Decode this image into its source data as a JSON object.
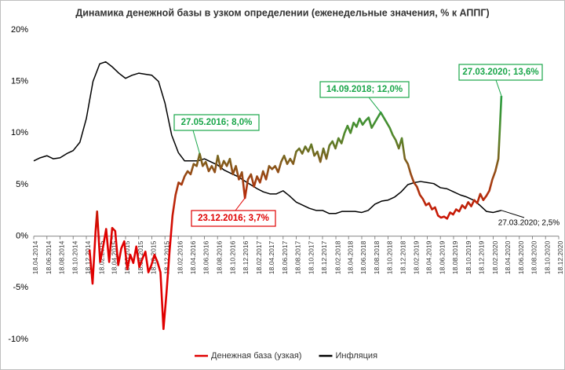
{
  "chart_data": {
    "type": "line",
    "title": "Динамика денежной базы в узком определении (еженедельные значения, % к АППГ)",
    "xlim": [
      "2014-04-18",
      "2020-12-18"
    ],
    "xticks": [
      {
        "value": "2014-04-18",
        "label": "18.04.2014"
      },
      {
        "value": "2014-06-18",
        "label": "18.06.2014"
      },
      {
        "value": "2014-08-18",
        "label": "18.08.2014"
      },
      {
        "value": "2014-10-18",
        "label": "18.10.2014"
      },
      {
        "value": "2014-12-18",
        "label": "18.12.2014"
      },
      {
        "value": "2015-02-18",
        "label": "18.02.2015"
      },
      {
        "value": "2015-04-18",
        "label": "18.04.2015"
      },
      {
        "value": "2015-06-18",
        "label": "18.06.2015"
      },
      {
        "value": "2015-08-18",
        "label": "18.08.2015"
      },
      {
        "value": "2015-10-18",
        "label": "18.10.2015"
      },
      {
        "value": "2015-12-18",
        "label": "18.12.2015"
      },
      {
        "value": "2016-02-18",
        "label": "18.02.2016"
      },
      {
        "value": "2016-04-18",
        "label": "18.04.2016"
      },
      {
        "value": "2016-06-18",
        "label": "18.06.2016"
      },
      {
        "value": "2016-08-18",
        "label": "18.08.2016"
      },
      {
        "value": "2016-10-18",
        "label": "18.10.2016"
      },
      {
        "value": "2016-12-18",
        "label": "18.12.2016"
      },
      {
        "value": "2017-02-18",
        "label": "18.02.2017"
      },
      {
        "value": "2017-04-18",
        "label": "18.04.2017"
      },
      {
        "value": "2017-06-18",
        "label": "18.06.2017"
      },
      {
        "value": "2017-08-18",
        "label": "18.08.2017"
      },
      {
        "value": "2017-10-18",
        "label": "18.10.2017"
      },
      {
        "value": "2017-12-18",
        "label": "18.12.2017"
      },
      {
        "value": "2018-02-18",
        "label": "18.02.2018"
      },
      {
        "value": "2018-04-18",
        "label": "18.04.2018"
      },
      {
        "value": "2018-06-18",
        "label": "18.06.2018"
      },
      {
        "value": "2018-08-18",
        "label": "18.08.2018"
      },
      {
        "value": "2018-10-18",
        "label": "18.10.2018"
      },
      {
        "value": "2018-12-18",
        "label": "18.12.2018"
      },
      {
        "value": "2019-02-18",
        "label": "18.02.2019"
      },
      {
        "value": "2019-04-18",
        "label": "18.04.2019"
      },
      {
        "value": "2019-06-18",
        "label": "18.06.2019"
      },
      {
        "value": "2019-08-18",
        "label": "18.08.2019"
      },
      {
        "value": "2019-10-18",
        "label": "18.10.2019"
      },
      {
        "value": "2019-12-18",
        "label": "18.12.2019"
      },
      {
        "value": "2020-02-18",
        "label": "18.02.2020"
      },
      {
        "value": "2020-04-18",
        "label": "18.04.2020"
      },
      {
        "value": "2020-06-18",
        "label": "18.06.2020"
      },
      {
        "value": "2020-08-18",
        "label": "18.08.2020"
      },
      {
        "value": "2020-10-18",
        "label": "18.10.2020"
      },
      {
        "value": "2020-12-18",
        "label": "18.12.2020"
      }
    ],
    "ylim": [
      -10,
      20
    ],
    "yticks": [
      {
        "value": -10,
        "label": "-10%"
      },
      {
        "value": -5,
        "label": "-5%"
      },
      {
        "value": 0,
        "label": "0%"
      },
      {
        "value": 5,
        "label": "5%"
      },
      {
        "value": 10,
        "label": "10%"
      },
      {
        "value": 15,
        "label": "15%"
      },
      {
        "value": 20,
        "label": "20%"
      }
    ],
    "grid": false,
    "legend": "bottom",
    "series": [
      {
        "name": "Денежная база (узкая)",
        "color": "#e00000",
        "gradient": [
          "#e00000",
          "#e00000",
          "#e00000",
          "#a83a10",
          "#4f8a2c",
          "#1aa64a",
          "#1aa64a"
        ],
        "x": [
          "2015-01-02",
          "2015-01-16",
          "2015-01-30",
          "2015-02-06",
          "2015-02-20",
          "2015-03-06",
          "2015-03-20",
          "2015-04-03",
          "2015-04-17",
          "2015-05-01",
          "2015-05-15",
          "2015-05-29",
          "2015-06-12",
          "2015-06-26",
          "2015-07-10",
          "2015-07-24",
          "2015-08-07",
          "2015-08-21",
          "2015-09-04",
          "2015-09-18",
          "2015-10-02",
          "2015-10-16",
          "2015-10-30",
          "2015-11-13",
          "2015-11-27",
          "2015-12-11",
          "2015-12-25",
          "2016-01-08",
          "2016-01-22",
          "2016-02-05",
          "2016-02-19",
          "2016-03-04",
          "2016-03-18",
          "2016-04-01",
          "2016-04-15",
          "2016-04-29",
          "2016-05-13",
          "2016-05-27",
          "2016-06-10",
          "2016-06-24",
          "2016-07-08",
          "2016-07-22",
          "2016-08-05",
          "2016-08-19",
          "2016-09-02",
          "2016-09-16",
          "2016-09-30",
          "2016-10-14",
          "2016-10-28",
          "2016-11-11",
          "2016-11-25",
          "2016-12-09",
          "2016-12-23",
          "2017-01-06",
          "2017-01-20",
          "2017-02-03",
          "2017-02-17",
          "2017-03-03",
          "2017-03-17",
          "2017-03-31",
          "2017-04-14",
          "2017-04-28",
          "2017-05-12",
          "2017-05-26",
          "2017-06-09",
          "2017-06-23",
          "2017-07-07",
          "2017-07-21",
          "2017-08-04",
          "2017-08-18",
          "2017-09-01",
          "2017-09-15",
          "2017-09-29",
          "2017-10-13",
          "2017-10-27",
          "2017-11-10",
          "2017-11-24",
          "2017-12-08",
          "2017-12-22",
          "2018-01-05",
          "2018-01-19",
          "2018-02-02",
          "2018-02-16",
          "2018-03-02",
          "2018-03-16",
          "2018-03-30",
          "2018-04-13",
          "2018-04-27",
          "2018-05-11",
          "2018-05-25",
          "2018-06-08",
          "2018-06-22",
          "2018-07-06",
          "2018-07-20",
          "2018-08-03",
          "2018-08-17",
          "2018-08-31",
          "2018-09-14",
          "2018-09-28",
          "2018-10-12",
          "2018-10-26",
          "2018-11-09",
          "2018-11-23",
          "2018-12-07",
          "2018-12-21",
          "2019-01-04",
          "2019-01-18",
          "2019-02-01",
          "2019-02-15",
          "2019-03-01",
          "2019-03-15",
          "2019-03-29",
          "2019-04-12",
          "2019-04-26",
          "2019-05-10",
          "2019-05-24",
          "2019-06-07",
          "2019-06-21",
          "2019-07-05",
          "2019-07-19",
          "2019-08-02",
          "2019-08-16",
          "2019-08-30",
          "2019-09-13",
          "2019-09-27",
          "2019-10-11",
          "2019-10-25",
          "2019-11-08",
          "2019-11-22",
          "2019-12-06",
          "2019-12-20",
          "2020-01-03",
          "2020-01-17",
          "2020-01-31",
          "2020-02-14",
          "2020-02-28",
          "2020-03-13",
          "2020-03-20",
          "2020-03-27"
        ],
        "values": [
          -1.3,
          -4.6,
          0.5,
          2.4,
          -2.5,
          -1.0,
          0.7,
          -2.5,
          0.8,
          0.5,
          -2.8,
          -1.2,
          -0.5,
          -3.2,
          -1.8,
          -2.6,
          -1.0,
          -3.0,
          -2.2,
          -1.5,
          -3.5,
          -2.8,
          -1.8,
          -2.5,
          -3.5,
          -9.0,
          -5.5,
          -1.5,
          2.0,
          4.0,
          5.2,
          5.0,
          5.8,
          6.3,
          6.0,
          7.0,
          6.8,
          8.0,
          6.8,
          7.2,
          6.3,
          6.8,
          6.2,
          7.8,
          6.5,
          7.3,
          6.8,
          7.5,
          6.0,
          6.8,
          5.5,
          6.2,
          3.7,
          5.5,
          6.0,
          4.8,
          5.8,
          5.2,
          6.3,
          5.5,
          6.8,
          6.5,
          6.8,
          6.2,
          7.2,
          7.8,
          7.0,
          7.5,
          7.0,
          8.2,
          8.5,
          8.0,
          8.7,
          8.2,
          8.9,
          7.8,
          8.2,
          7.2,
          8.5,
          7.5,
          8.8,
          9.2,
          8.5,
          9.5,
          9.0,
          10.0,
          10.7,
          10.0,
          11.0,
          10.6,
          11.4,
          10.8,
          11.2,
          11.5,
          10.5,
          11.0,
          11.5,
          12.0,
          11.5,
          11.0,
          10.5,
          9.8,
          9.3,
          8.5,
          9.5,
          7.5,
          7.0,
          6.0,
          5.2,
          4.8,
          4.0,
          3.6,
          3.0,
          3.2,
          2.6,
          2.8,
          2.0,
          1.8,
          1.9,
          1.7,
          2.3,
          2.1,
          2.6,
          2.4,
          3.0,
          2.7,
          3.3,
          2.9,
          3.5,
          3.2,
          4.1,
          3.5,
          3.9,
          4.4,
          5.5,
          6.3,
          7.5,
          10.5,
          13.6
        ]
      },
      {
        "name": "Инфляция",
        "color": "#000000",
        "x": [
          "2014-04-18",
          "2014-05-18",
          "2014-06-18",
          "2014-07-18",
          "2014-08-18",
          "2014-09-18",
          "2014-10-18",
          "2014-11-18",
          "2014-12-18",
          "2015-01-18",
          "2015-02-18",
          "2015-03-18",
          "2015-04-18",
          "2015-05-18",
          "2015-06-18",
          "2015-07-18",
          "2015-08-18",
          "2015-09-18",
          "2015-10-18",
          "2015-11-18",
          "2015-12-18",
          "2016-01-18",
          "2016-02-18",
          "2016-03-18",
          "2016-04-18",
          "2016-05-18",
          "2016-06-18",
          "2016-07-18",
          "2016-08-18",
          "2016-09-18",
          "2016-10-18",
          "2016-11-18",
          "2016-12-18",
          "2017-01-18",
          "2017-02-18",
          "2017-03-18",
          "2017-04-18",
          "2017-05-18",
          "2017-06-18",
          "2017-07-18",
          "2017-08-18",
          "2017-09-18",
          "2017-10-18",
          "2017-11-18",
          "2017-12-18",
          "2018-01-18",
          "2018-02-18",
          "2018-03-18",
          "2018-04-18",
          "2018-05-18",
          "2018-06-18",
          "2018-07-18",
          "2018-08-18",
          "2018-09-18",
          "2018-10-18",
          "2018-11-18",
          "2018-12-18",
          "2019-01-18",
          "2019-02-18",
          "2019-03-18",
          "2019-04-18",
          "2019-05-18",
          "2019-06-18",
          "2019-07-18",
          "2019-08-18",
          "2019-09-18",
          "2019-10-18",
          "2019-11-18",
          "2019-12-18",
          "2020-01-18",
          "2020-02-18",
          "2020-03-27"
        ],
        "values": [
          7.3,
          7.6,
          7.8,
          7.5,
          7.6,
          8.0,
          8.3,
          9.1,
          11.4,
          15.0,
          16.7,
          16.9,
          16.4,
          15.8,
          15.3,
          15.6,
          15.8,
          15.7,
          15.6,
          15.0,
          12.9,
          9.8,
          8.1,
          7.3,
          7.3,
          7.3,
          7.5,
          7.2,
          6.9,
          6.4,
          6.1,
          5.8,
          5.4,
          5.0,
          4.6,
          4.3,
          4.1,
          4.1,
          4.4,
          3.9,
          3.3,
          3.0,
          2.7,
          2.5,
          2.5,
          2.2,
          2.2,
          2.4,
          2.4,
          2.4,
          2.3,
          2.5,
          3.1,
          3.4,
          3.5,
          3.8,
          4.3,
          5.0,
          5.2,
          5.3,
          5.2,
          5.1,
          4.7,
          4.6,
          4.3,
          4.0,
          3.8,
          3.5,
          3.0,
          2.4,
          2.3,
          2.5
        ]
      }
    ],
    "annotations": [
      {
        "text": "27.05.2016; 8,0%",
        "x": "2016-05-27",
        "y": 8.0,
        "color": "#1aa64a"
      },
      {
        "text": "23.12.2016; 3,7%",
        "x": "2016-12-23",
        "y": 3.7,
        "color": "#e00000"
      },
      {
        "text": "14.09.2018; 12,0%",
        "x": "2018-09-14",
        "y": 12.0,
        "color": "#1aa64a"
      },
      {
        "text": "27.03.2020; 13,6%",
        "x": "2020-03-27",
        "y": 13.6,
        "color": "#1aa64a"
      },
      {
        "text": "27.03.2020; 2,5%",
        "x": "2020-03-27",
        "y": 2.5,
        "color": "#000000"
      }
    ]
  }
}
